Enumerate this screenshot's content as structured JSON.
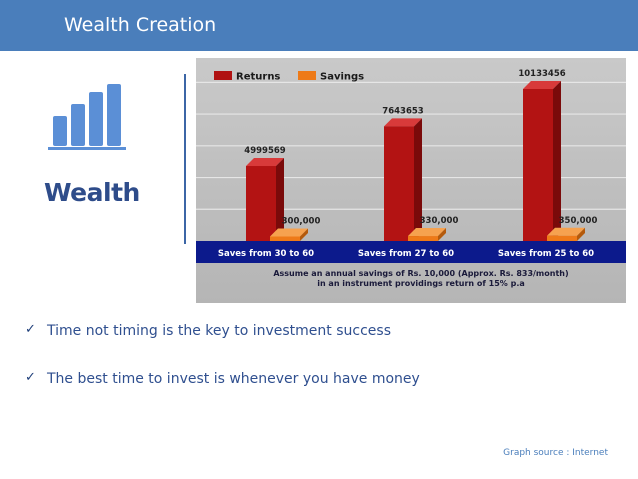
{
  "header": {
    "title": "Wealth Creation"
  },
  "logo": {
    "label": "Wealth",
    "icon": "bar-chart-icon",
    "color": "#5b8fd6"
  },
  "bullets": [
    {
      "icon": "checkmark-icon",
      "text": "Time not timing is the key to investment success"
    },
    {
      "icon": "checkmark-icon",
      "text": "The best time to invest is whenever you have money"
    }
  ],
  "source": "Graph source : Internet",
  "colors": {
    "header": "#4a7ebb",
    "returns": "#b01212",
    "savings": "#ee7a18",
    "band": "#0c1a8c"
  },
  "chart_data": {
    "type": "bar",
    "categories": [
      "Saves from 30 to 60",
      "Saves from 27 to 60",
      "Saves from 25 to 60"
    ],
    "series": [
      {
        "name": "Returns",
        "values": [
          4999569,
          7643653,
          10133456
        ],
        "labels": [
          "4999569",
          "7643653",
          "10133456"
        ]
      },
      {
        "name": "Savings",
        "values": [
          300000,
          330000,
          350000
        ],
        "labels": [
          "300,000",
          "330,000",
          "350,000"
        ]
      }
    ],
    "note_lines": [
      "Assume an annual savings of Rs. 10,000 (Approx. Rs. 833/month)",
      "in an instrument providings return of 15% p.a"
    ],
    "ylim": [
      0,
      11000000
    ],
    "legend": "top-left",
    "grid": true
  }
}
